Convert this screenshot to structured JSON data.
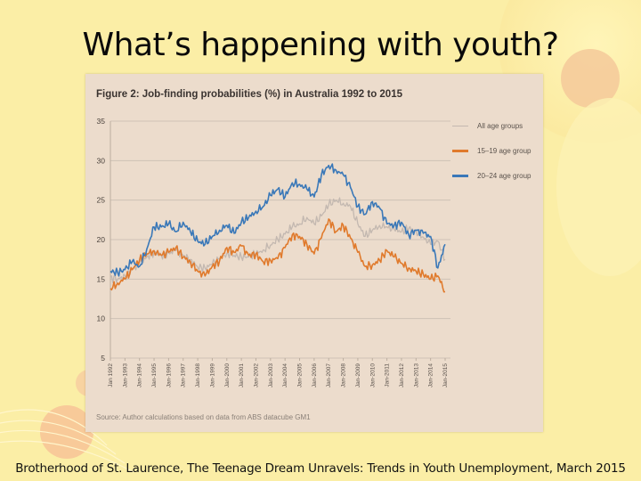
{
  "slide": {
    "title": "What’s happening with youth?",
    "footer": "Brotherhood of St. Laurence, The Teenage Dream Unravels: Trends in Youth Unemployment, March 2015"
  },
  "colors": {
    "background": "#fbeea6",
    "photo_bg": "#ecdccc",
    "all_ages": "#c3b8b0",
    "age_15_19": "#e07a2c",
    "age_20_24": "#3a78b8",
    "gridline": "#cfc2b6"
  },
  "figure": {
    "title": "Figure 2: Job-finding probabilities (%) in Australia 1992 to 2015",
    "source": "Source: Author calculations based on data from ABS datacube GM1"
  },
  "chart_data": {
    "type": "line",
    "title": "Figure 2: Job-finding probabilities (%) in Australia 1992 to 2015",
    "xlabel": "",
    "ylabel": "",
    "ylim": [
      5,
      35
    ],
    "yticks": [
      5,
      10,
      15,
      20,
      25,
      30,
      35
    ],
    "grid": "horizontal",
    "legend_position": "upper right",
    "x_tick_labels": [
      "Jan 1992",
      "Jan-1993",
      "Jan-1994",
      "Jan-1995",
      "Jan-1996",
      "Jan-1997",
      "Jan-1998",
      "Jan-1999",
      "Jan-2000",
      "Jan-2001",
      "Jan-2002",
      "Jan-2003",
      "Jan-2004",
      "Jan-2005",
      "Jan-2006",
      "Jan-2007",
      "Jan-2008",
      "Jan-2009",
      "Jan-2010",
      "Jan-2011",
      "Jan-2012",
      "Jan-2013",
      "Jan-2014",
      "Jan-2015"
    ],
    "x": [
      1992.0,
      1992.5,
      1993.0,
      1993.5,
      1994.0,
      1994.5,
      1995.0,
      1995.5,
      1996.0,
      1996.5,
      1997.0,
      1997.5,
      1998.0,
      1998.5,
      1999.0,
      1999.5,
      2000.0,
      2000.5,
      2001.0,
      2001.5,
      2002.0,
      2002.5,
      2003.0,
      2003.5,
      2004.0,
      2004.5,
      2005.0,
      2005.5,
      2006.0,
      2006.5,
      2007.0,
      2007.5,
      2008.0,
      2008.5,
      2009.0,
      2009.5,
      2010.0,
      2010.5,
      2011.0,
      2011.5,
      2012.0,
      2012.5,
      2013.0,
      2013.5,
      2014.0,
      2014.5,
      2015.0
    ],
    "series": [
      {
        "name": "All age groups",
        "values": [
          15.2,
          15.0,
          15.4,
          16.2,
          17.0,
          17.8,
          18.4,
          18.0,
          18.3,
          18.6,
          18.0,
          17.5,
          16.5,
          16.4,
          16.9,
          17.6,
          18.3,
          18.0,
          17.8,
          17.8,
          18.2,
          18.7,
          19.3,
          20.0,
          20.7,
          21.6,
          22.0,
          22.8,
          22.0,
          23.0,
          24.4,
          25.0,
          24.6,
          24.2,
          22.0,
          20.4,
          21.2,
          21.8,
          21.6,
          21.3,
          21.0,
          21.4,
          21.1,
          20.3,
          19.4,
          19.8,
          17.5
        ]
      },
      {
        "name": "15–19 age group",
        "values": [
          13.8,
          14.5,
          15.0,
          16.2,
          17.4,
          18.2,
          18.6,
          18.0,
          18.4,
          19.0,
          17.8,
          17.2,
          16.0,
          15.4,
          16.6,
          17.3,
          19.0,
          18.4,
          19.2,
          18.0,
          18.2,
          17.2,
          17.4,
          17.6,
          19.0,
          20.6,
          20.4,
          19.4,
          18.2,
          20.2,
          22.6,
          21.0,
          21.8,
          20.2,
          18.4,
          16.6,
          16.8,
          17.4,
          18.6,
          17.8,
          17.0,
          16.4,
          16.0,
          15.6,
          15.0,
          15.4,
          13.4
        ]
      },
      {
        "name": "20–24 age group",
        "values": [
          16.0,
          15.8,
          16.2,
          17.2,
          16.6,
          18.8,
          21.6,
          21.6,
          22.0,
          21.0,
          22.2,
          21.0,
          19.8,
          19.4,
          20.4,
          21.2,
          21.8,
          20.8,
          22.2,
          22.8,
          23.6,
          24.2,
          25.6,
          26.4,
          25.4,
          27.2,
          27.0,
          26.4,
          25.4,
          28.2,
          29.4,
          28.8,
          28.2,
          26.6,
          24.2,
          23.2,
          24.8,
          24.0,
          22.0,
          21.8,
          22.2,
          20.6,
          21.2,
          20.8,
          20.4,
          16.4,
          19.4
        ]
      }
    ]
  },
  "legend": [
    {
      "label": "All age groups"
    },
    {
      "label": "15–19 age group"
    },
    {
      "label": "20–24 age group"
    }
  ]
}
